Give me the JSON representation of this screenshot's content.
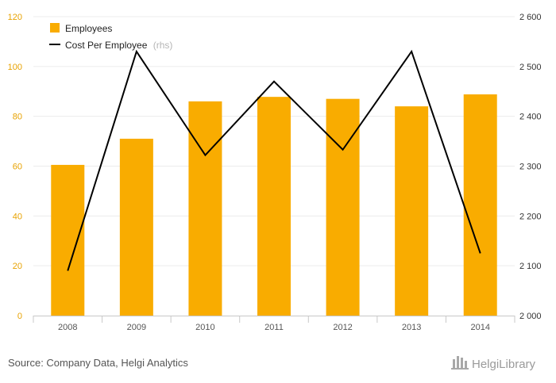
{
  "chart_data": {
    "type": "bar",
    "categories": [
      "2008",
      "2009",
      "2010",
      "2011",
      "2012",
      "2013",
      "2014"
    ],
    "series": [
      {
        "name": "Employees",
        "type": "bar",
        "axis": "left",
        "color": "#f9ac00",
        "values": [
          60.5,
          71,
          86,
          87.8,
          87,
          84,
          88.8
        ]
      },
      {
        "name": "Cost Per Employee",
        "name_suffix": "(rhs)",
        "type": "line",
        "axis": "right",
        "color": "#000000",
        "values": [
          2090,
          2530,
          2322,
          2470,
          2333,
          2530,
          2125
        ]
      }
    ],
    "y_left": {
      "min": 0,
      "max": 120,
      "ticks": [
        "0",
        "20",
        "40",
        "60",
        "80",
        "100",
        "120"
      ]
    },
    "y_right": {
      "min": 2000,
      "max": 2600,
      "ticks": [
        "2 000",
        "2 100",
        "2 200",
        "2 300",
        "2 400",
        "2 500",
        "2 600"
      ]
    },
    "grid": true,
    "legend_position": "top-left"
  },
  "footer": {
    "source": "Source: Company Data, Helgi Analytics",
    "brand": "HelgiLibrary"
  }
}
